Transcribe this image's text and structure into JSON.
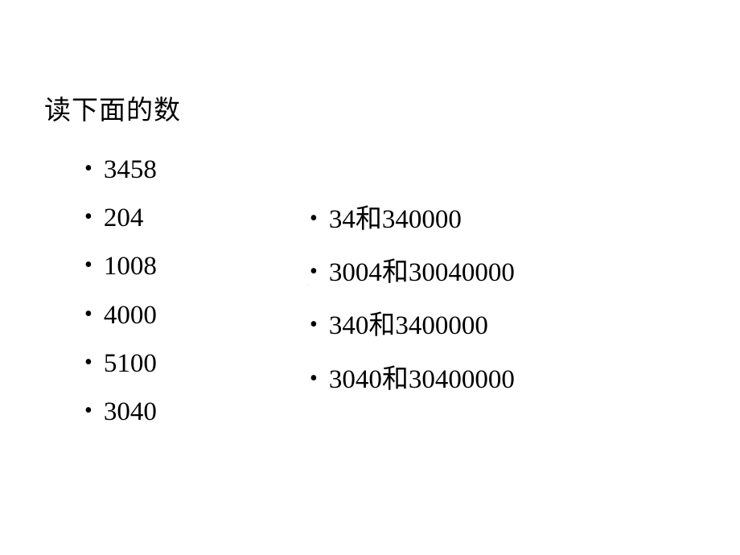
{
  "title": "读下面的数",
  "left_list": [
    "3458",
    "204",
    "1008",
    "4000",
    "5100",
    "3040"
  ],
  "right_list": [
    "34和340000",
    "3004和30040000",
    "340和3400000",
    "3040和30400000"
  ],
  "bullet_char": "•",
  "colors": {
    "background": "#ffffff",
    "text": "#000000",
    "watermark": "#e8e8e8"
  },
  "typography": {
    "title_fontsize": 33,
    "list_fontsize": 33,
    "font_family": "SimSun, serif"
  },
  "watermark": "."
}
